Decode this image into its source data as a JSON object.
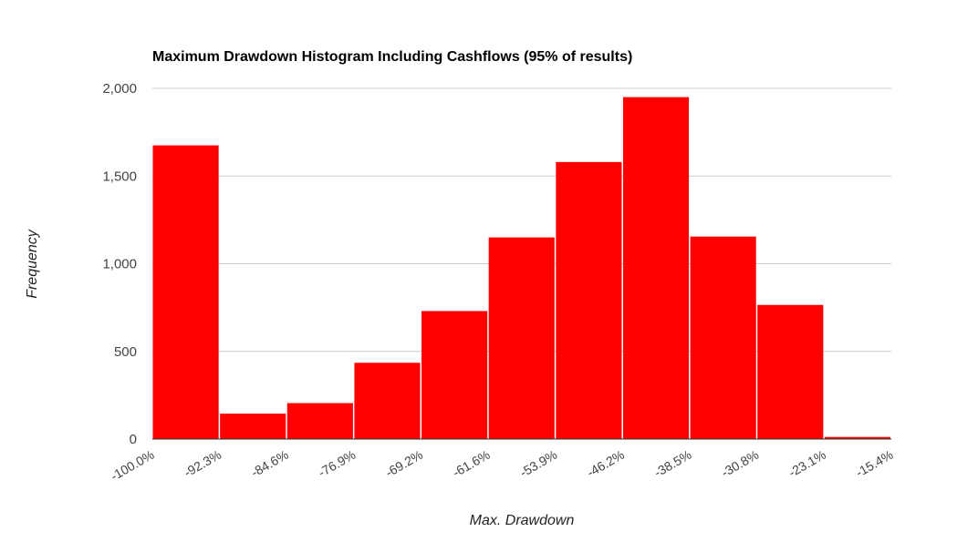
{
  "chart_data": {
    "type": "bar",
    "title": "Maximum Drawdown Histogram Including Cashflows (95% of results)",
    "xlabel": "Max. Drawdown",
    "ylabel": "Frequency",
    "x_tick_labels": [
      "-100.0%",
      "-92.3%",
      "-84.6%",
      "-76.9%",
      "-69.2%",
      "-61.6%",
      "-53.9%",
      "-46.2%",
      "-38.5%",
      "-30.8%",
      "-23.1%",
      "-15.4%"
    ],
    "y_tick_labels": [
      "0",
      "500",
      "1,000",
      "1,500",
      "2,000"
    ],
    "y_ticks": [
      0,
      500,
      1000,
      1500,
      2000
    ],
    "ylim": [
      0,
      2000
    ],
    "bins": [
      {
        "from": "-100.0%",
        "to": "-92.3%",
        "value": 1675
      },
      {
        "from": "-92.3%",
        "to": "-84.6%",
        "value": 145
      },
      {
        "from": "-84.6%",
        "to": "-76.9%",
        "value": 205
      },
      {
        "from": "-76.9%",
        "to": "-69.2%",
        "value": 435
      },
      {
        "from": "-69.2%",
        "to": "-61.6%",
        "value": 730
      },
      {
        "from": "-61.6%",
        "to": "-53.9%",
        "value": 1150
      },
      {
        "from": "-53.9%",
        "to": "-46.2%",
        "value": 1580
      },
      {
        "from": "-46.2%",
        "to": "-38.5%",
        "value": 1950
      },
      {
        "from": "-38.5%",
        "to": "-30.8%",
        "value": 1155
      },
      {
        "from": "-30.8%",
        "to": "-23.1%",
        "value": 765
      },
      {
        "from": "-23.1%",
        "to": "-15.4%",
        "value": 12
      }
    ],
    "bar_color": "#ff0000",
    "grid": true,
    "legend": "none"
  }
}
